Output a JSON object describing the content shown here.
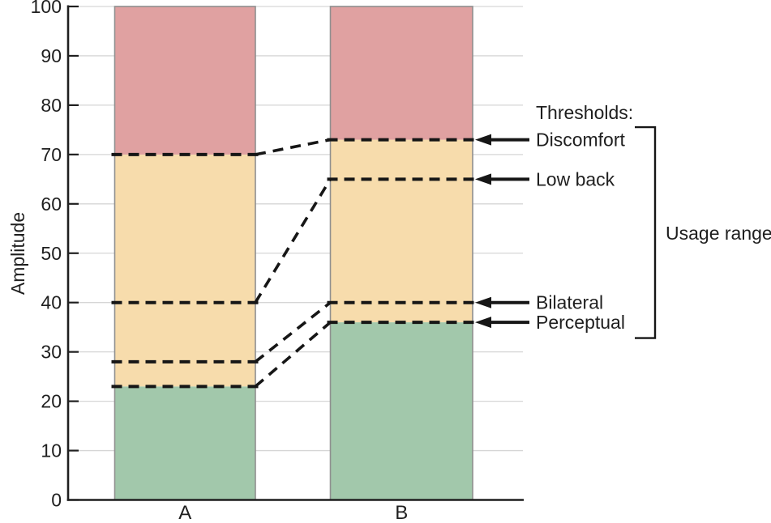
{
  "figure": {
    "ylabel": "Amplitude",
    "thresholds_title": "Thresholds:",
    "usage_range_label": "Usage range"
  },
  "chart_data": {
    "type": "bar",
    "subtype": "stacked-zone-bars-with-threshold-lines",
    "title": "",
    "xlabel": "",
    "ylabel": "Amplitude",
    "ylim": [
      0,
      100
    ],
    "ytick_step": 10,
    "grid": true,
    "categories": [
      "A",
      "B"
    ],
    "bar_total": 100,
    "zones": [
      {
        "name": "below-perceptual",
        "from": 0,
        "to": "Perceptual",
        "color": "#a2c8ab"
      },
      {
        "name": "usage-zone",
        "from": "Perceptual",
        "to": "Discomfort",
        "color": "#f7dcac"
      },
      {
        "name": "above-discomfort",
        "from": "Discomfort",
        "to": 100,
        "color": "#e0a1a1"
      }
    ],
    "thresholds": [
      {
        "label": "Discomfort",
        "values": {
          "A": 70,
          "B": 73
        }
      },
      {
        "label": "Low back",
        "values": {
          "A": 40,
          "B": 65
        }
      },
      {
        "label": "Bilateral",
        "values": {
          "A": 28,
          "B": 40
        }
      },
      {
        "label": "Perceptual",
        "values": {
          "A": 23,
          "B": 36
        }
      }
    ],
    "annotations": {
      "thresholds_title": "Thresholds:",
      "usage_range": "Usage range",
      "usage_range_span_thresholds": [
        "Discomfort",
        "Perceptual"
      ]
    },
    "legend_position": "right"
  },
  "colors": {
    "green_zone": "#a2c8ab",
    "tan_zone": "#f7dcac",
    "red_zone": "#e0a1a1",
    "bar_border": "#8f8f8f",
    "grid_line": "#d6d6d6",
    "axis_line": "#1f1f1f",
    "dash_line": "#161616",
    "text": "#1f1f1f"
  }
}
